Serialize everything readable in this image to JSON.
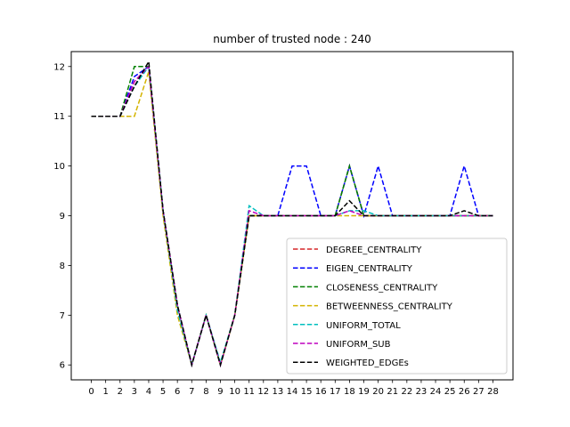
{
  "chart_data": {
    "type": "line",
    "title": "number of trusted node : 240",
    "xlabel": "",
    "ylabel": "",
    "x": [
      0,
      1,
      2,
      3,
      4,
      5,
      6,
      7,
      8,
      9,
      10,
      11,
      12,
      13,
      14,
      15,
      16,
      17,
      18,
      19,
      20,
      21,
      22,
      23,
      24,
      25,
      26,
      27,
      28
    ],
    "xlim": [
      -1.4,
      29.4
    ],
    "ylim": [
      5.7,
      12.3
    ],
    "yticks": [
      6,
      7,
      8,
      9,
      10,
      11,
      12
    ],
    "grid": false,
    "legend_position": "lower right",
    "series": [
      {
        "name": "DEGREE_CENTRALITY",
        "color": "#d62728",
        "values": [
          11,
          11,
          11,
          11.7,
          12,
          9.1,
          7.2,
          6,
          7,
          6,
          7,
          9,
          9,
          9,
          9,
          9,
          9,
          9,
          10,
          9,
          9,
          9,
          9,
          9,
          9,
          9,
          9,
          9,
          9
        ]
      },
      {
        "name": "EIGEN_CENTRALITY",
        "color": "#0000ff",
        "values": [
          11,
          11,
          11,
          11.8,
          12,
          9.1,
          7.2,
          6,
          7,
          6,
          7,
          9,
          9,
          9,
          10,
          10,
          9,
          9,
          10,
          9,
          10,
          9,
          9,
          9,
          9,
          9,
          10,
          9,
          9
        ]
      },
      {
        "name": "CLOSENESS_CENTRALITY",
        "color": "#008000",
        "values": [
          11,
          11,
          11,
          12,
          12,
          9.1,
          7.2,
          6,
          7,
          6,
          7,
          9,
          9,
          9,
          9,
          9,
          9,
          9,
          10,
          9,
          9,
          9,
          9,
          9,
          9,
          9,
          9,
          9,
          9
        ]
      },
      {
        "name": "BETWEENNESS_CENTRALITY",
        "color": "#d4b400",
        "values": [
          11,
          11,
          11,
          11,
          11.9,
          9,
          7,
          6,
          7,
          6,
          7,
          9,
          9,
          9,
          9,
          9,
          9,
          9,
          9,
          9,
          9,
          9,
          9,
          9,
          9,
          9,
          9,
          9,
          9
        ]
      },
      {
        "name": "UNIFORM_TOTAL",
        "color": "#00bfbf",
        "values": [
          11,
          11,
          11,
          11.6,
          12,
          9.1,
          7.1,
          6,
          7,
          6.05,
          7,
          9.2,
          9,
          9,
          9,
          9,
          9,
          9,
          9.1,
          9.1,
          9,
          9,
          9,
          9,
          9,
          9,
          9,
          9,
          9
        ]
      },
      {
        "name": "UNIFORM_SUB",
        "color": "#bf00bf",
        "values": [
          11,
          11,
          11,
          11.7,
          12,
          9.1,
          7.2,
          6,
          7,
          6,
          7,
          9.1,
          9,
          9,
          9,
          9,
          9,
          9,
          9.1,
          9,
          9,
          9,
          9,
          9,
          9,
          9,
          9,
          9,
          9
        ]
      },
      {
        "name": "WEIGHTED_EDGEs",
        "color": "#000000",
        "values": [
          11,
          11,
          11,
          11.6,
          12.1,
          9.1,
          7.2,
          6,
          7,
          6,
          7,
          9,
          9,
          9,
          9,
          9,
          9,
          9,
          9.3,
          9,
          9,
          9,
          9,
          9,
          9,
          9,
          9.1,
          9,
          9
        ]
      }
    ]
  }
}
